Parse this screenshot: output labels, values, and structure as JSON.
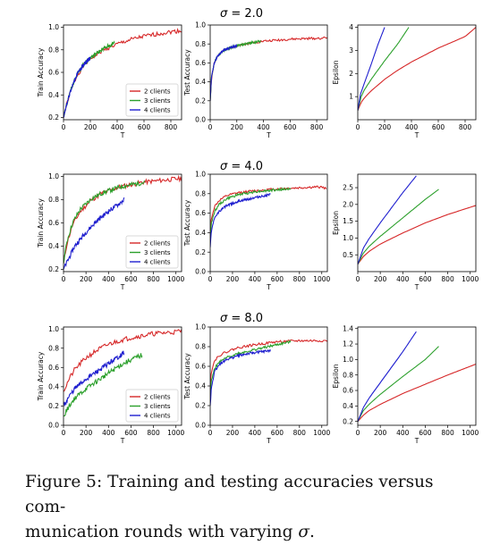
{
  "caption": {
    "prefix": "Figure 5: Training and testing accuracies versus com-",
    "line2_text": "munication rounds with varying ",
    "line2_symbol": "σ",
    "line2_end": "."
  },
  "colors": {
    "2 clients": "#d62728",
    "3 clients": "#2ca02c",
    "4 clients": "#1f1fcf"
  },
  "chart_data": [
    {
      "type": "line",
      "group_title": "σ = 2.0",
      "panels": [
        {
          "ylabel": "Train Accuracy",
          "xlabel": "T",
          "xlim": [
            0,
            880
          ],
          "ylim": [
            0.18,
            1.02
          ],
          "xticks": [
            0,
            200,
            400,
            600,
            800
          ],
          "yticks": [
            0.2,
            0.4,
            0.6,
            0.8,
            1.0
          ],
          "legend": "bottom-right",
          "noise": 0.018,
          "series": [
            {
              "name": "2 clients",
              "x": [
                0,
                20,
                50,
                100,
                150,
                200,
                300,
                400,
                500,
                600,
                700,
                800,
                880
              ],
              "y": [
                0.2,
                0.3,
                0.42,
                0.57,
                0.66,
                0.72,
                0.8,
                0.85,
                0.89,
                0.92,
                0.94,
                0.96,
                0.97
              ]
            },
            {
              "name": "3 clients",
              "x": [
                0,
                20,
                50,
                100,
                150,
                200,
                300,
                380
              ],
              "y": [
                0.2,
                0.3,
                0.43,
                0.58,
                0.67,
                0.73,
                0.81,
                0.86
              ]
            },
            {
              "name": "4 clients",
              "x": [
                0,
                20,
                50,
                100,
                150,
                200
              ],
              "y": [
                0.2,
                0.3,
                0.43,
                0.58,
                0.67,
                0.73
              ]
            }
          ]
        },
        {
          "ylabel": "Test Accuracy",
          "xlabel": "T",
          "xlim": [
            0,
            880
          ],
          "ylim": [
            0.0,
            1.0
          ],
          "xticks": [
            0,
            200,
            400,
            600,
            800
          ],
          "yticks": [
            0.0,
            0.2,
            0.4,
            0.6,
            0.8,
            1.0
          ],
          "legend": "none",
          "noise": 0.012,
          "series": [
            {
              "name": "2 clients",
              "x": [
                0,
                10,
                30,
                60,
                100,
                150,
                200,
                300,
                400,
                500,
                600,
                700,
                800,
                880
              ],
              "y": [
                0.2,
                0.45,
                0.6,
                0.68,
                0.73,
                0.76,
                0.78,
                0.81,
                0.83,
                0.84,
                0.85,
                0.855,
                0.86,
                0.865
              ]
            },
            {
              "name": "3 clients",
              "x": [
                0,
                10,
                30,
                60,
                100,
                150,
                200,
                300,
                380
              ],
              "y": [
                0.2,
                0.45,
                0.6,
                0.68,
                0.73,
                0.76,
                0.78,
                0.81,
                0.83
              ]
            },
            {
              "name": "4 clients",
              "x": [
                0,
                10,
                30,
                60,
                100,
                150,
                200
              ],
              "y": [
                0.2,
                0.45,
                0.6,
                0.68,
                0.73,
                0.76,
                0.78
              ]
            }
          ]
        },
        {
          "ylabel": "Epsilon",
          "xlabel": "T",
          "xlim": [
            0,
            880
          ],
          "ylim": [
            0.0,
            4.1
          ],
          "xticks": [
            0,
            200,
            400,
            600,
            800
          ],
          "yticks": [
            1,
            2,
            3,
            4
          ],
          "legend": "none",
          "noise": 0,
          "series": [
            {
              "name": "2 clients",
              "x": [
                0,
                25,
                50,
                100,
                200,
                300,
                400,
                500,
                600,
                700,
                800,
                880
              ],
              "y": [
                0.4,
                0.75,
                0.95,
                1.25,
                1.75,
                2.15,
                2.5,
                2.8,
                3.1,
                3.35,
                3.6,
                4.0
              ]
            },
            {
              "name": "3 clients",
              "x": [
                0,
                25,
                50,
                100,
                200,
                300,
                380
              ],
              "y": [
                0.4,
                1.0,
                1.3,
                1.75,
                2.55,
                3.3,
                4.0
              ]
            },
            {
              "name": "4 clients",
              "x": [
                0,
                20,
                50,
                100,
                150,
                200
              ],
              "y": [
                0.4,
                1.1,
                1.6,
                2.4,
                3.25,
                4.0
              ]
            }
          ]
        }
      ]
    },
    {
      "type": "line",
      "group_title": "σ = 4.0",
      "panels": [
        {
          "ylabel": "Train Accuracy",
          "xlabel": "T",
          "xlim": [
            0,
            1050
          ],
          "ylim": [
            0.18,
            1.02
          ],
          "xticks": [
            0,
            200,
            400,
            600,
            800,
            1000
          ],
          "yticks": [
            0.2,
            0.4,
            0.6,
            0.8,
            1.0
          ],
          "legend": "bottom-right",
          "noise": 0.02,
          "series": [
            {
              "name": "2 clients",
              "x": [
                0,
                30,
                80,
                150,
                250,
                350,
                500,
                600,
                700,
                800,
                900,
                1000,
                1050
              ],
              "y": [
                0.25,
                0.42,
                0.58,
                0.7,
                0.8,
                0.86,
                0.91,
                0.93,
                0.95,
                0.96,
                0.97,
                0.98,
                0.98
              ]
            },
            {
              "name": "3 clients",
              "x": [
                0,
                30,
                80,
                150,
                250,
                350,
                500,
                600,
                720
              ],
              "y": [
                0.25,
                0.44,
                0.6,
                0.72,
                0.81,
                0.86,
                0.91,
                0.93,
                0.95
              ]
            },
            {
              "name": "4 clients",
              "x": [
                0,
                50,
                100,
                200,
                300,
                400,
                500,
                540
              ],
              "y": [
                0.2,
                0.3,
                0.4,
                0.52,
                0.62,
                0.7,
                0.77,
                0.8
              ]
            }
          ]
        },
        {
          "ylabel": "Test Accuracy",
          "xlabel": "T",
          "xlim": [
            0,
            1050
          ],
          "ylim": [
            0.0,
            1.0
          ],
          "xticks": [
            0,
            200,
            400,
            600,
            800,
            1000
          ],
          "yticks": [
            0.0,
            0.2,
            0.4,
            0.6,
            0.8,
            1.0
          ],
          "legend": "none",
          "noise": 0.012,
          "series": [
            {
              "name": "2 clients",
              "x": [
                0,
                10,
                40,
                80,
                150,
                250,
                400,
                600,
                800,
                1000,
                1040
              ],
              "y": [
                0.35,
                0.55,
                0.67,
                0.73,
                0.78,
                0.81,
                0.83,
                0.85,
                0.86,
                0.87,
                0.85
              ]
            },
            {
              "name": "3 clients",
              "x": [
                0,
                10,
                40,
                80,
                150,
                250,
                400,
                600,
                720
              ],
              "y": [
                0.3,
                0.5,
                0.62,
                0.69,
                0.75,
                0.79,
                0.82,
                0.84,
                0.85
              ]
            },
            {
              "name": "4 clients",
              "x": [
                0,
                10,
                40,
                80,
                150,
                250,
                400,
                540
              ],
              "y": [
                0.25,
                0.42,
                0.55,
                0.62,
                0.68,
                0.72,
                0.76,
                0.79
              ]
            }
          ]
        },
        {
          "ylabel": "Epsilon",
          "xlabel": "T",
          "xlim": [
            0,
            1050
          ],
          "ylim": [
            0.0,
            2.9
          ],
          "xticks": [
            0,
            200,
            400,
            600,
            800,
            1000
          ],
          "yticks": [
            0.5,
            1.0,
            1.5,
            2.0,
            2.5
          ],
          "legend": "none",
          "noise": 0,
          "series": [
            {
              "name": "2 clients",
              "x": [
                0,
                50,
                100,
                200,
                400,
                600,
                800,
                1050
              ],
              "y": [
                0.22,
                0.45,
                0.6,
                0.82,
                1.15,
                1.45,
                1.7,
                1.97
              ]
            },
            {
              "name": "3 clients",
              "x": [
                0,
                50,
                100,
                200,
                400,
                600,
                720
              ],
              "y": [
                0.22,
                0.55,
                0.75,
                1.05,
                1.6,
                2.15,
                2.45
              ]
            },
            {
              "name": "4 clients",
              "x": [
                0,
                50,
                100,
                200,
                300,
                400,
                520
              ],
              "y": [
                0.22,
                0.7,
                0.98,
                1.45,
                1.9,
                2.35,
                2.85
              ]
            }
          ]
        }
      ]
    },
    {
      "type": "line",
      "group_title": "σ = 8.0",
      "panels": [
        {
          "ylabel": "Train Accuracy",
          "xlabel": "T",
          "xlim": [
            0,
            1050
          ],
          "ylim": [
            0.0,
            1.02
          ],
          "xticks": [
            0,
            200,
            400,
            600,
            800,
            1000
          ],
          "yticks": [
            0.0,
            0.2,
            0.4,
            0.6,
            0.8,
            1.0
          ],
          "legend": "bottom-right",
          "noise": 0.025,
          "series": [
            {
              "name": "2 clients",
              "x": [
                0,
                50,
                100,
                200,
                300,
                400,
                500,
                600,
                700,
                800,
                900,
                1000,
                1050
              ],
              "y": [
                0.35,
                0.48,
                0.58,
                0.7,
                0.78,
                0.84,
                0.88,
                0.91,
                0.93,
                0.95,
                0.96,
                0.97,
                0.98
              ]
            },
            {
              "name": "3 clients",
              "x": [
                0,
                50,
                100,
                200,
                300,
                400,
                500,
                600,
                700
              ],
              "y": [
                0.1,
                0.2,
                0.28,
                0.38,
                0.46,
                0.54,
                0.62,
                0.68,
                0.73
              ]
            },
            {
              "name": "4 clients",
              "x": [
                0,
                50,
                100,
                200,
                300,
                400,
                500,
                540
              ],
              "y": [
                0.2,
                0.3,
                0.38,
                0.48,
                0.56,
                0.64,
                0.72,
                0.76
              ]
            }
          ]
        },
        {
          "ylabel": "Test Accuracy",
          "xlabel": "T",
          "xlim": [
            0,
            1050
          ],
          "ylim": [
            0.0,
            1.0
          ],
          "xticks": [
            0,
            200,
            400,
            600,
            800,
            1000
          ],
          "yticks": [
            0.0,
            0.2,
            0.4,
            0.6,
            0.8,
            1.0
          ],
          "legend": "none",
          "noise": 0.012,
          "series": [
            {
              "name": "2 clients",
              "x": [
                0,
                10,
                40,
                80,
                150,
                250,
                400,
                600,
                800,
                1050
              ],
              "y": [
                0.4,
                0.55,
                0.66,
                0.71,
                0.75,
                0.79,
                0.82,
                0.85,
                0.86,
                0.86
              ]
            },
            {
              "name": "3 clients",
              "x": [
                0,
                10,
                40,
                80,
                150,
                250,
                400,
                600,
                720
              ],
              "y": [
                0.3,
                0.45,
                0.58,
                0.64,
                0.69,
                0.73,
                0.77,
                0.82,
                0.85
              ]
            },
            {
              "name": "4 clients",
              "x": [
                0,
                10,
                40,
                80,
                150,
                250,
                400,
                540
              ],
              "y": [
                0.2,
                0.38,
                0.55,
                0.62,
                0.67,
                0.71,
                0.74,
                0.76
              ]
            }
          ]
        },
        {
          "ylabel": "Epsilon",
          "xlabel": "T",
          "xlim": [
            0,
            1050
          ],
          "ylim": [
            0.15,
            1.42
          ],
          "xticks": [
            0,
            200,
            400,
            600,
            800,
            1000
          ],
          "yticks": [
            0.2,
            0.4,
            0.6,
            0.8,
            1.0,
            1.2,
            1.4
          ],
          "legend": "none",
          "noise": 0,
          "series": [
            {
              "name": "2 clients",
              "x": [
                0,
                50,
                100,
                200,
                400,
                600,
                800,
                1050
              ],
              "y": [
                0.2,
                0.28,
                0.34,
                0.42,
                0.56,
                0.68,
                0.8,
                0.94
              ]
            },
            {
              "name": "3 clients",
              "x": [
                0,
                50,
                100,
                200,
                400,
                600,
                720
              ],
              "y": [
                0.2,
                0.34,
                0.42,
                0.55,
                0.78,
                1.0,
                1.17
              ]
            },
            {
              "name": "4 clients",
              "x": [
                0,
                50,
                100,
                200,
                300,
                400,
                520
              ],
              "y": [
                0.2,
                0.38,
                0.5,
                0.7,
                0.9,
                1.1,
                1.36
              ]
            }
          ]
        }
      ]
    }
  ]
}
